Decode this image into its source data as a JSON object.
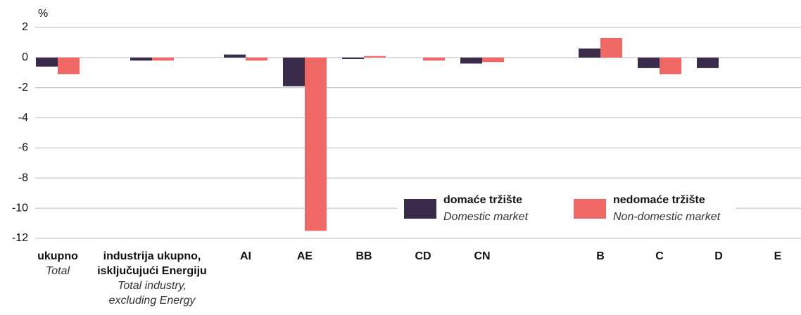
{
  "chart_data": {
    "type": "bar",
    "y_label": "%",
    "categories": [
      [
        "ukupno"
      ],
      [
        "industrija ukupno,",
        "isključujući Energiju"
      ],
      [
        "AI"
      ],
      [
        "AE"
      ],
      [
        "BB"
      ],
      [
        "CD"
      ],
      [
        "CN"
      ],
      [
        "B"
      ],
      [
        "C"
      ],
      [
        "D"
      ],
      [
        "E"
      ]
    ],
    "categories_en": [
      [
        "Total"
      ],
      [
        "Total industry,",
        "excluding Energy"
      ],
      [],
      [],
      [],
      [],
      [],
      [],
      [],
      [],
      []
    ],
    "series": [
      {
        "name": "domaće tržište",
        "name_en": "Domestic market",
        "color": "#3b2b4b",
        "values": [
          -0.6,
          -0.2,
          0.2,
          -1.9,
          -0.1,
          null,
          -0.4,
          0.6,
          -0.7,
          -0.7,
          null
        ]
      },
      {
        "name": "nedomaće tržište",
        "name_en": "Non-domestic market",
        "color": "#ef6865",
        "values": [
          -1.1,
          -0.2,
          -0.2,
          -11.5,
          0.1,
          -0.2,
          -0.3,
          1.3,
          -1.1,
          null,
          null
        ]
      }
    ],
    "ylim": [
      -12,
      2
    ],
    "yticks": [
      2,
      0,
      -2,
      -4,
      -6,
      -8,
      -10,
      -12
    ],
    "grid": true
  }
}
